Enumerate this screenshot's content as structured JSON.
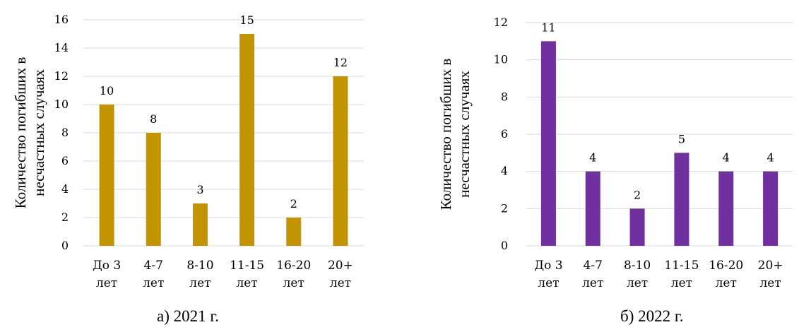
{
  "chart_data": [
    {
      "type": "bar",
      "caption": "а) 2021 г.",
      "ylabel_lines": [
        "Количество погибших в",
        "несчастных случаях"
      ],
      "categories": [
        [
          "До 3",
          "лет"
        ],
        [
          "4-7",
          "лет"
        ],
        [
          "8-10",
          "лет"
        ],
        [
          "11-15",
          "лет"
        ],
        [
          "16-20",
          "лет"
        ],
        [
          "20+",
          "лет"
        ]
      ],
      "values": [
        10,
        8,
        3,
        15,
        2,
        12
      ],
      "ylim": [
        0,
        16
      ],
      "yticks": [
        0,
        2,
        4,
        6,
        8,
        10,
        12,
        14,
        16
      ],
      "bar_color": "#C19400",
      "grid": true,
      "legend": "none"
    },
    {
      "type": "bar",
      "caption": "б) 2022 г.",
      "ylabel_lines": [
        "Количество погибших в",
        "несчастных случаях"
      ],
      "categories": [
        [
          "До 3",
          "лет"
        ],
        [
          "4-7",
          "лет"
        ],
        [
          "8-10",
          "лет"
        ],
        [
          "11-15",
          "лет"
        ],
        [
          "16-20",
          "лет"
        ],
        [
          "20+",
          "лет"
        ]
      ],
      "values": [
        11,
        4,
        2,
        5,
        4,
        4
      ],
      "ylim": [
        0,
        12
      ],
      "yticks": [
        0,
        2,
        4,
        6,
        8,
        10,
        12
      ],
      "bar_color": "#7030A0",
      "grid": true,
      "legend": "none"
    }
  ]
}
